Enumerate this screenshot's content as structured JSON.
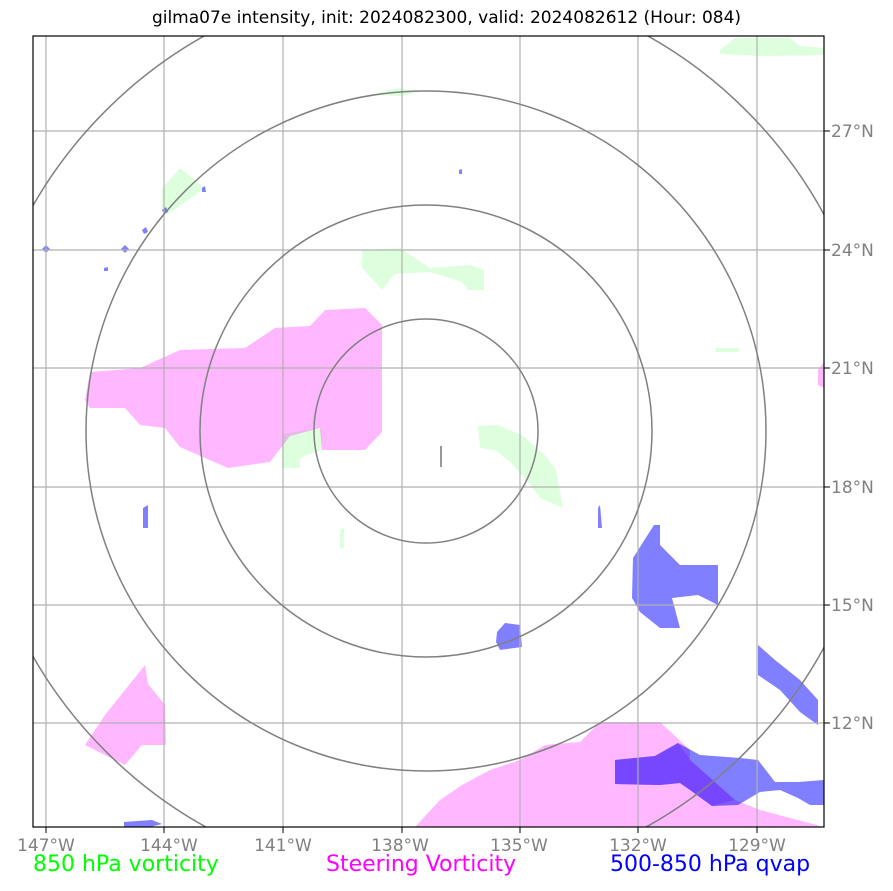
{
  "title": "gilma07e intensity, init: 2024082300, valid: 2024082612 (Hour: 084)",
  "lon_ticks": [
    "147°W",
    "144°W",
    "141°W",
    "138°W",
    "135°W",
    "132°W",
    "129°W"
  ],
  "lat_ticks": [
    "27°N",
    "24°N",
    "21°N",
    "18°N",
    "15°N",
    "12°N"
  ],
  "legend": {
    "item1": "850 hPa vorticity",
    "item2": "Steering Vorticity",
    "item3": "500-850 hPa qvap"
  },
  "colors": {
    "vorticity_850": "#00ff00",
    "steering_vorticity": "#ff00ff",
    "qvap": "#0000ff",
    "gridline": "#b0b0b0",
    "range_rings": "#808080"
  },
  "map": {
    "projection": "lat-lon",
    "lon_range": [
      "147.5°W",
      "127.5°W"
    ],
    "lat_range": [
      "9.5°N",
      "29.5°N"
    ],
    "range_rings": 4,
    "center": "137.5°W, 19.5°N"
  }
}
